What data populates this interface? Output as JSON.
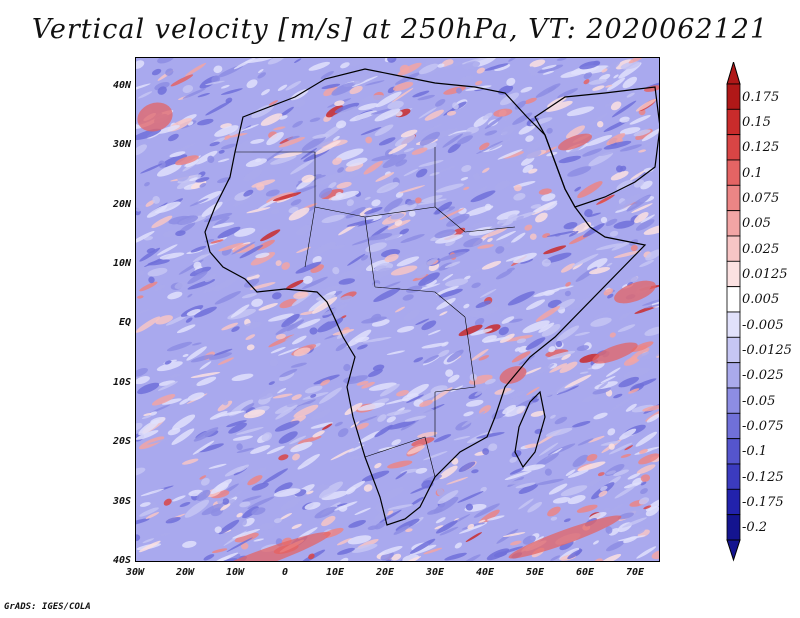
{
  "title": "Vertical velocity [m/s] at 250hPa, VT: 2020062121",
  "footer": "GrADS: IGES/COLA",
  "map": {
    "lon_range": [
      -30,
      75
    ],
    "lat_range": [
      -40,
      45
    ],
    "lat_labels": [
      "40N",
      "30N",
      "20N",
      "10N",
      "EQ",
      "10S",
      "20S",
      "30S",
      "40S"
    ],
    "lat_values": [
      40,
      30,
      20,
      10,
      0,
      -10,
      -20,
      -30,
      -40
    ],
    "lon_labels": [
      "30W",
      "20W",
      "10W",
      "0",
      "10E",
      "20E",
      "30E",
      "40E",
      "50E",
      "60E",
      "70E"
    ],
    "lon_values": [
      -30,
      -20,
      -10,
      0,
      10,
      20,
      30,
      40,
      50,
      60,
      70
    ]
  },
  "colorbar": {
    "labels": [
      "0.175",
      "0.15",
      "0.125",
      "0.1",
      "0.075",
      "0.05",
      "0.025",
      "0.0125",
      "0.005",
      "-0.005",
      "-0.0125",
      "-0.025",
      "-0.05",
      "-0.075",
      "-0.1",
      "-0.125",
      "-0.175",
      "-0.2"
    ],
    "colors": [
      "#b01818",
      "#c92b2b",
      "#d94545",
      "#e46464",
      "#ec8585",
      "#f2a5a5",
      "#f7c5c5",
      "#fbe1e1",
      "#ffffff",
      "#e1e1fb",
      "#c6c6f3",
      "#aaaaec",
      "#8d8de3",
      "#7070d9",
      "#5555cd",
      "#3b3bbf",
      "#2222ac",
      "#14148f"
    ]
  }
}
